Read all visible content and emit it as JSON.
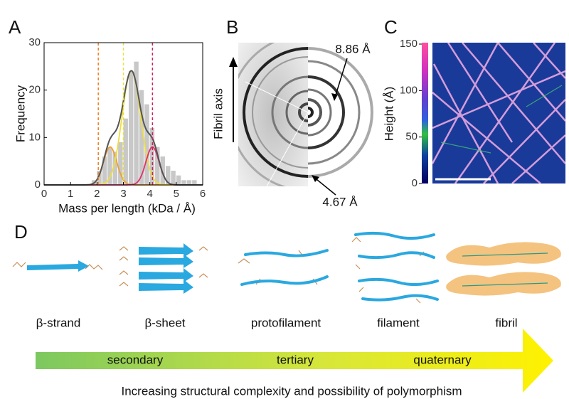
{
  "chart_data": {
    "type": "histogram",
    "panel_label": "A",
    "x_label": "Mass per length (kDa / Å)",
    "y_label": "Frequency",
    "bins": [
      1.8,
      2.0,
      2.2,
      2.4,
      2.6,
      2.8,
      3.0,
      3.2,
      3.4,
      3.6,
      3.8,
      4.0,
      4.2,
      4.4,
      4.6,
      4.8,
      5.0,
      5.2,
      5.4,
      5.6,
      5.8,
      6.0
    ],
    "values": [
      1,
      3,
      6,
      8,
      7,
      9,
      14,
      24,
      26,
      20,
      17,
      12,
      8,
      6,
      4,
      3,
      2,
      1,
      1,
      1,
      0
    ],
    "color": "#c8c8c8",
    "fits": [
      {
        "color": "#f0a030",
        "mean": 2.5,
        "sd": 0.25,
        "amp": 8
      },
      {
        "color": "#eedd40",
        "mean": 3.3,
        "sd": 0.35,
        "amp": 24
      },
      {
        "color": "#e0306a",
        "mean": 4.1,
        "sd": 0.25,
        "amp": 8
      }
    ],
    "total_color": "#555555",
    "vlines": [
      {
        "x": 2.05,
        "color": "#f08020"
      },
      {
        "x": 3.0,
        "color": "#e8e040"
      },
      {
        "x": 4.1,
        "color": "#d0205a"
      }
    ],
    "xlim": [
      0,
      6
    ],
    "xticks": [
      0,
      1,
      2,
      3,
      4,
      5,
      6
    ],
    "ylim": [
      0,
      30
    ],
    "yticks": [
      0,
      10,
      20,
      30
    ]
  },
  "panel_b": {
    "label": "B",
    "axis_label": "Fibril axis",
    "annotations": [
      "8.86 Å",
      "4.67 Å"
    ]
  },
  "panel_c": {
    "label": "C",
    "axis_label": "Height (Å)",
    "ylim": [
      0,
      150
    ],
    "yticks": [
      0,
      50,
      100,
      150
    ]
  },
  "panel_d": {
    "label": "D",
    "stages": [
      "β-strand",
      "β-sheet",
      "protofilament",
      "filament",
      "fibril"
    ],
    "levels": [
      "secondary",
      "tertiary",
      "quaternary"
    ],
    "caption": "Increasing structural complexity and possibility of polymorphism"
  }
}
